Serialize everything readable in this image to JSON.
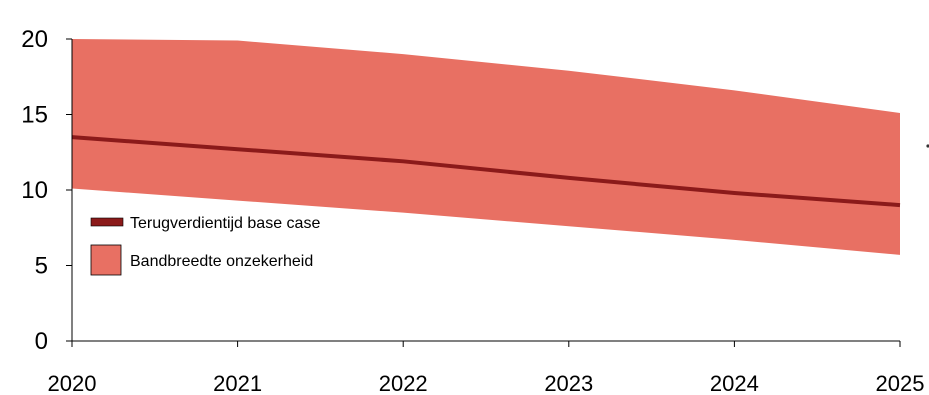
{
  "chart_data": {
    "type": "area",
    "x": [
      2020,
      2021,
      2022,
      2023,
      2024,
      2025
    ],
    "xlim": [
      2020,
      2025
    ],
    "ylim": [
      0,
      20
    ],
    "y_ticks": [
      0,
      5,
      10,
      15,
      20
    ],
    "x_tick_labels": [
      "2020",
      "2021",
      "2022",
      "2023",
      "2024",
      "2025"
    ],
    "grid": false,
    "legend_placement": "left",
    "series": [
      {
        "name": "Terugverdientijd base case",
        "kind": "line",
        "color": "#8b1a1a",
        "values": [
          13.5,
          12.7,
          11.9,
          10.8,
          9.8,
          9.0
        ]
      },
      {
        "name": "Bandbreedte onzekerheid",
        "kind": "band",
        "color": "#e87063",
        "upper": [
          20.0,
          19.9,
          19.0,
          17.9,
          16.6,
          15.1
        ],
        "lower": [
          10.1,
          9.3,
          8.5,
          7.6,
          6.7,
          5.7
        ]
      }
    ]
  }
}
